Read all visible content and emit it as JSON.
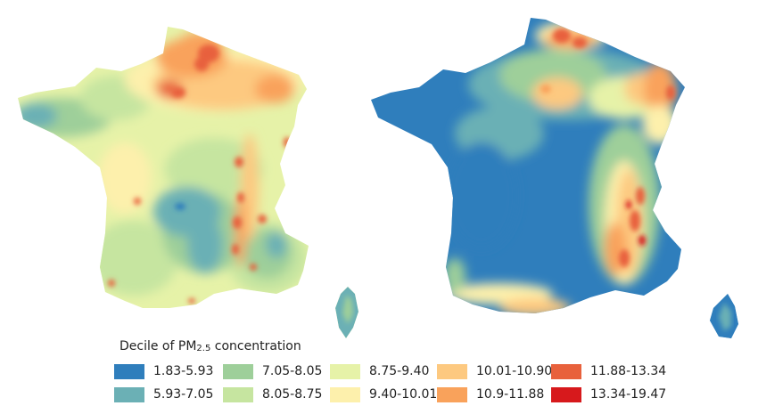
{
  "legend": {
    "title_prefix": "Decile of PM",
    "title_sub": "2.5",
    "title_suffix": " concentration",
    "items": [
      {
        "label": "1.83-5.93",
        "color": "#2f7ebc"
      },
      {
        "label": "5.93-7.05",
        "color": "#6bb0b5"
      },
      {
        "label": "7.05-8.05",
        "color": "#9ecf9a"
      },
      {
        "label": "8.05-8.75",
        "color": "#c6e5a0"
      },
      {
        "label": "8.75-9.40",
        "color": "#e6f2a8"
      },
      {
        "label": "9.40-10.01",
        "color": "#fdf0ac"
      },
      {
        "label": "10.01-10.90",
        "color": "#fdc980"
      },
      {
        "label": "10.9-11.88",
        "color": "#f9a25b"
      },
      {
        "label": "11.88-13.34",
        "color": "#e8613c"
      },
      {
        "label": "13.34-19.47",
        "color": "#d7191c"
      }
    ]
  }
}
